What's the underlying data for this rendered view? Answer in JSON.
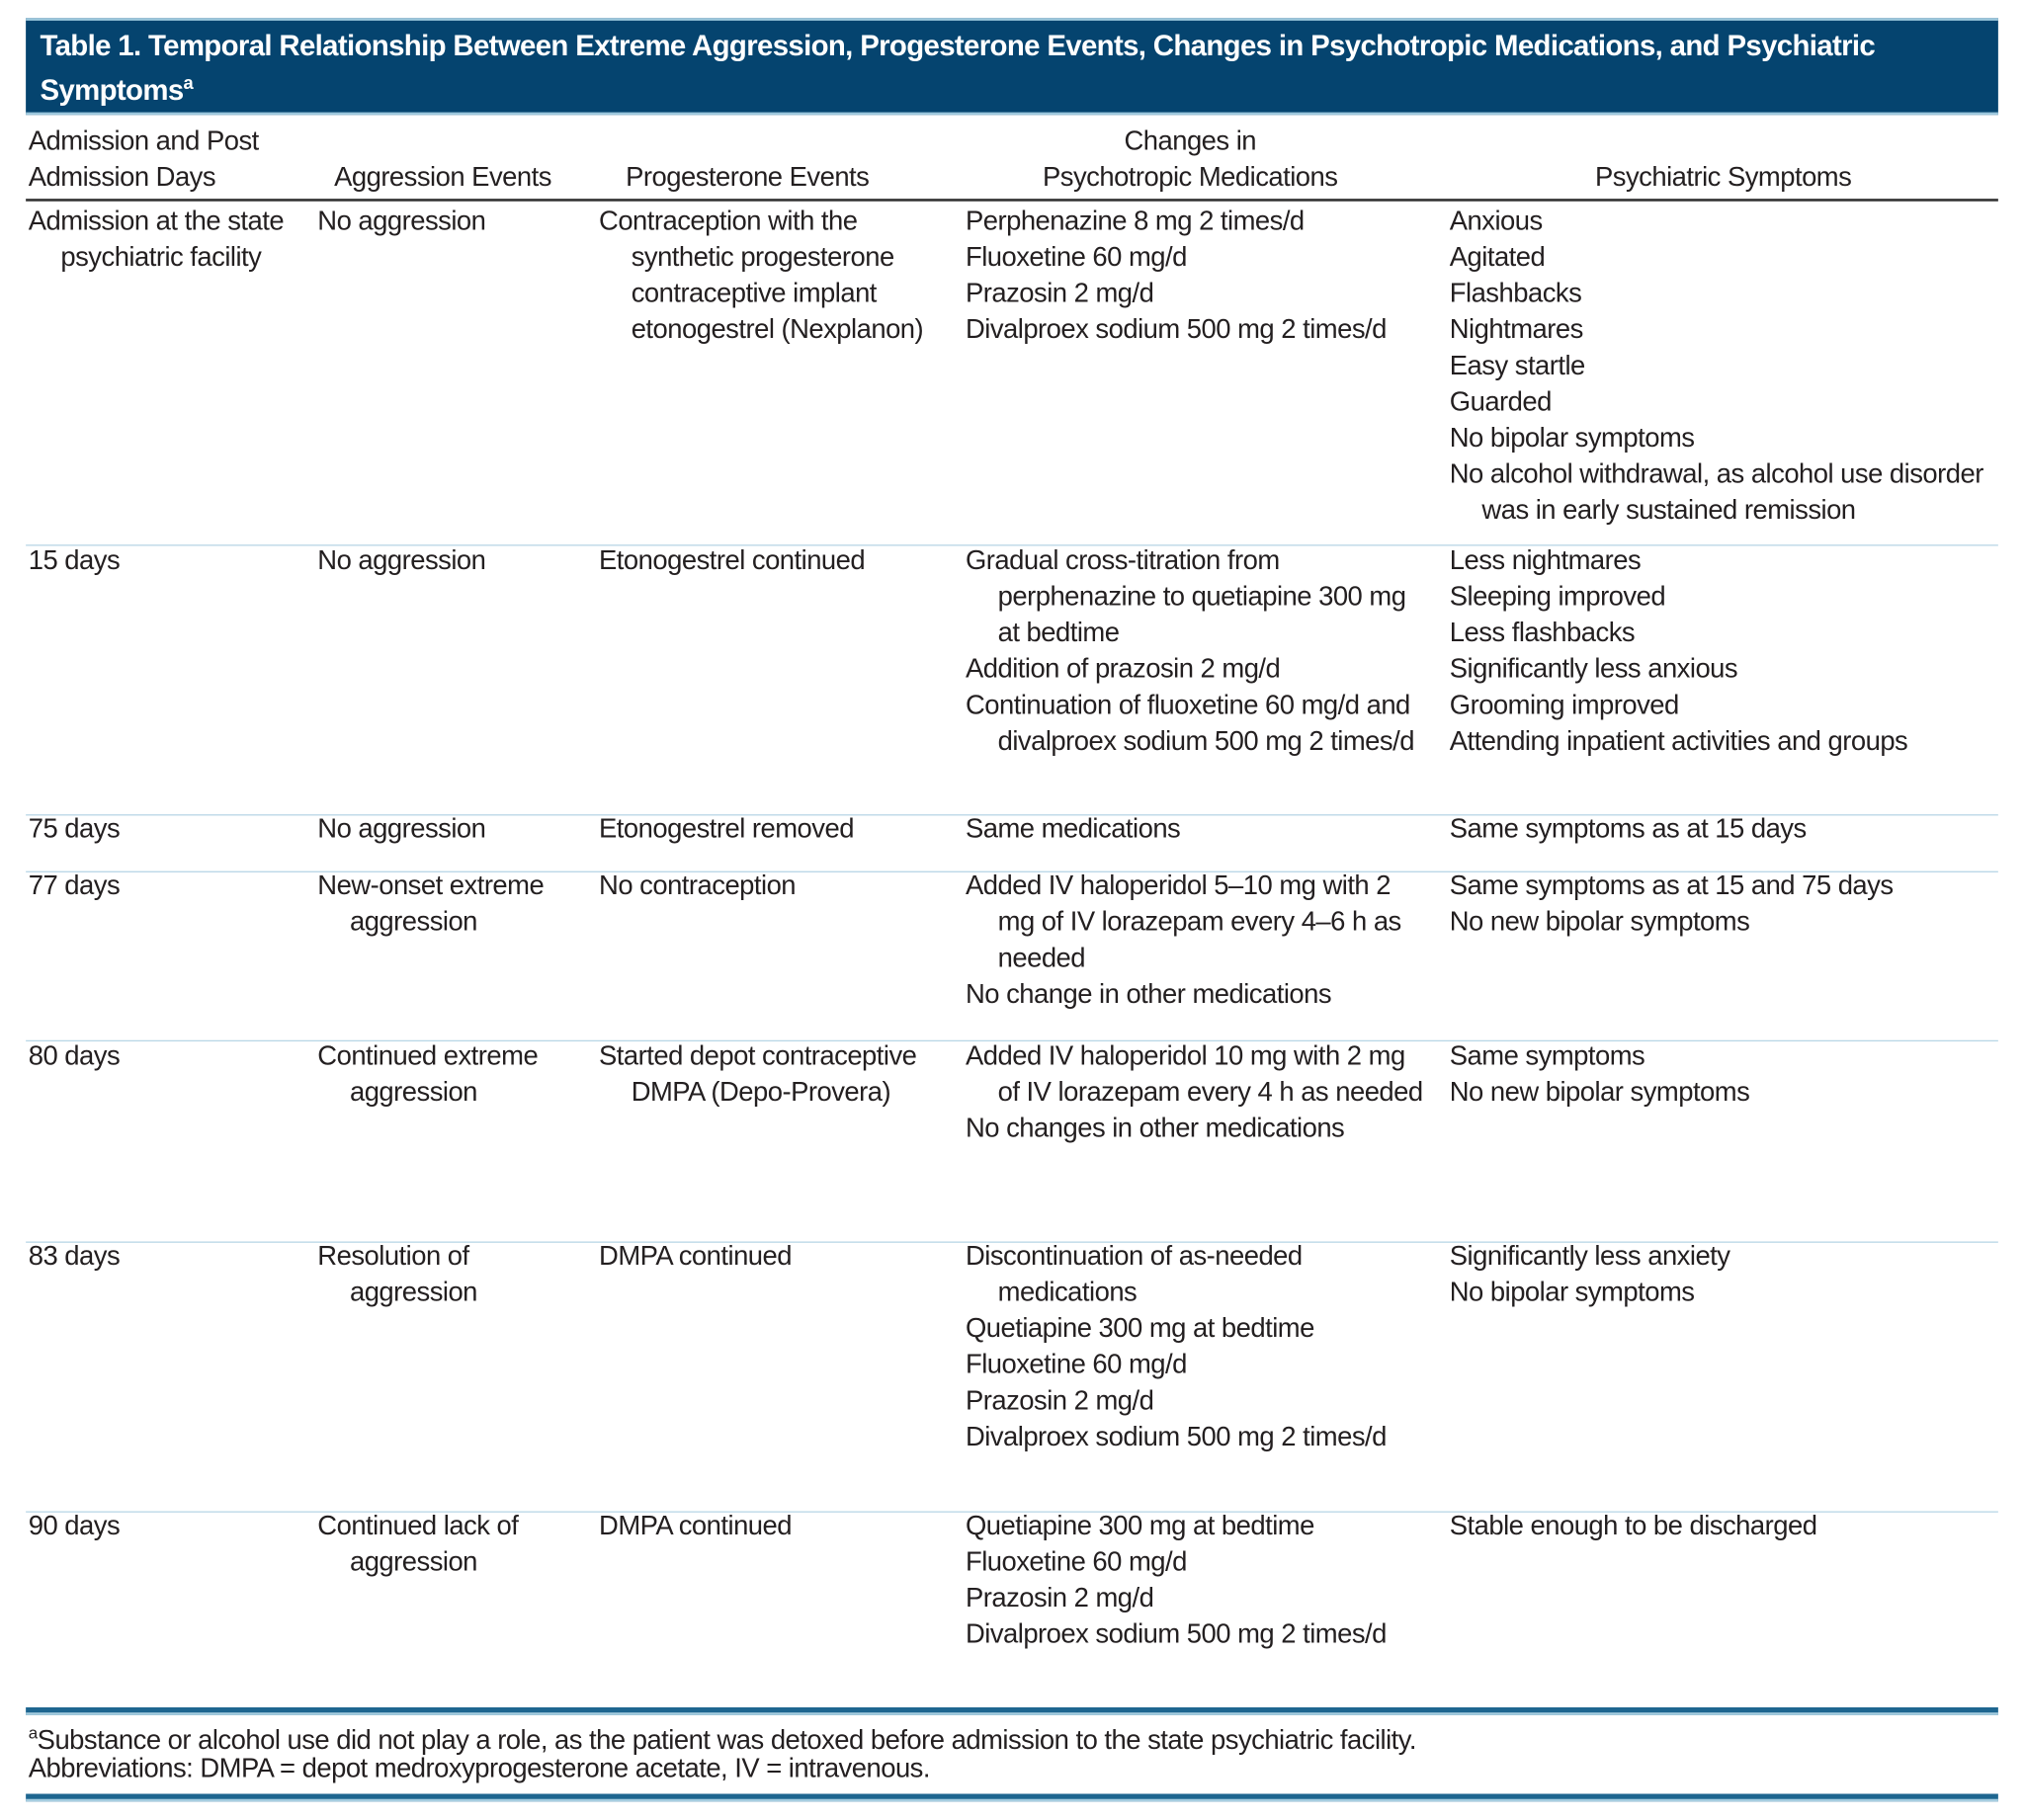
{
  "title": {
    "text": "Table 1. Temporal Relationship Between Extreme Aggression, Progesterone Events, Changes in Psychotropic Medications, and Psychiatric Symptoms",
    "footnote_marker": "a"
  },
  "colors": {
    "title_bg": "#05446f",
    "title_text": "#ffffff",
    "row_separator": "#b8d6e6",
    "rule": "#1e6690"
  },
  "columns": [
    {
      "lines": [
        "Admission and Post",
        "Admission Days"
      ]
    },
    {
      "lines": [
        "Aggression Events"
      ]
    },
    {
      "lines": [
        "Progesterone Events"
      ]
    },
    {
      "lines": [
        "Changes in",
        "Psychotropic Medications"
      ]
    },
    {
      "lines": [
        "Psychiatric Symptoms"
      ]
    }
  ],
  "rows": [
    {
      "day": [
        "Admission at the state psychiatric facility"
      ],
      "aggression": [
        "No aggression"
      ],
      "progesterone": [
        "Contraception with the synthetic progesterone contraceptive implant etonogestrel (Nexplanon)"
      ],
      "medications": [
        "Perphenazine 8 mg 2 times/d",
        "Fluoxetine 60 mg/d",
        "Prazosin 2 mg/d",
        "Divalproex sodium 500 mg 2 times/d"
      ],
      "symptoms": [
        "Anxious",
        "Agitated",
        "Flashbacks",
        "Nightmares",
        "Easy startle",
        "Guarded",
        "No bipolar symptoms",
        "No alcohol withdrawal, as alcohol use disorder was in early sustained remission"
      ]
    },
    {
      "day": [
        "15 days"
      ],
      "aggression": [
        "No aggression"
      ],
      "progesterone": [
        "Etonogestrel continued"
      ],
      "medications": [
        "Gradual cross-titration from perphenazine to quetiapine 300 mg at bedtime",
        "Addition of prazosin 2 mg/d",
        "Continuation of fluoxetine 60 mg/d and divalproex sodium 500 mg 2 times/d"
      ],
      "symptoms": [
        "Less nightmares",
        "Sleeping improved",
        "Less flashbacks",
        "Significantly less anxious",
        "Grooming improved",
        "Attending inpatient activities and groups"
      ]
    },
    {
      "day": [
        "75 days"
      ],
      "aggression": [
        "No aggression"
      ],
      "progesterone": [
        "Etonogestrel removed"
      ],
      "medications": [
        "Same medications"
      ],
      "symptoms": [
        "Same symptoms as at 15 days"
      ]
    },
    {
      "day": [
        "77 days"
      ],
      "aggression": [
        "New-onset extreme aggression"
      ],
      "progesterone": [
        "No contraception"
      ],
      "medications": [
        "Added IV haloperidol 5–10 mg with 2 mg of IV lorazepam every 4–6 h as needed",
        "No change in other medications"
      ],
      "symptoms": [
        "Same symptoms as at 15 and 75 days",
        "No new bipolar symptoms"
      ]
    },
    {
      "day": [
        "80 days"
      ],
      "aggression": [
        "Continued extreme aggression"
      ],
      "progesterone": [
        "Started depot contraceptive DMPA (Depo-Provera)"
      ],
      "medications": [
        "Added IV haloperidol 10 mg with 2 mg of IV lorazepam every 4 h as needed",
        "No changes in other medications"
      ],
      "symptoms": [
        "Same symptoms",
        "No new bipolar symptoms"
      ]
    },
    {
      "day": [
        "83 days"
      ],
      "aggression": [
        "Resolution of aggression"
      ],
      "progesterone": [
        "DMPA continued"
      ],
      "medications": [
        "Discontinuation of as-needed medications",
        "Quetiapine 300 mg at bedtime",
        "Fluoxetine 60 mg/d",
        "Prazosin 2 mg/d",
        "Divalproex sodium 500 mg 2 times/d"
      ],
      "symptoms": [
        "Significantly less anxiety",
        "No bipolar symptoms"
      ]
    },
    {
      "day": [
        "90 days"
      ],
      "aggression": [
        "Continued lack of aggression"
      ],
      "progesterone": [
        "DMPA continued"
      ],
      "medications": [
        "Quetiapine 300 mg at bedtime",
        "Fluoxetine 60 mg/d",
        "Prazosin 2 mg/d",
        "Divalproex sodium 500 mg 2 times/d"
      ],
      "symptoms": [
        "Stable enough to be discharged"
      ]
    }
  ],
  "footnotes": {
    "a_marker": "a",
    "a_text": "Substance or alcohol use did not play a role, as the patient was detoxed before admission to the state psychiatric facility.",
    "abbreviations": "Abbreviations: DMPA = depot medroxyprogesterone acetate, IV = intravenous."
  }
}
